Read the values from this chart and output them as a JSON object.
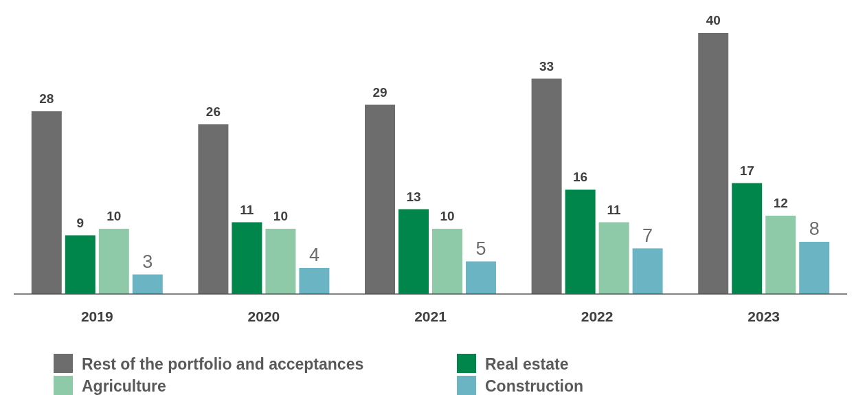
{
  "chart_data": {
    "type": "bar",
    "categories": [
      "2019",
      "2020",
      "2021",
      "2022",
      "2023"
    ],
    "series": [
      {
        "name": "Rest of the portfolio and acceptances",
        "color": "#6d6d6d",
        "values": [
          28,
          26,
          29,
          33,
          40
        ]
      },
      {
        "name": "Real estate",
        "color": "#00854a",
        "values": [
          9,
          11,
          13,
          16,
          17
        ]
      },
      {
        "name": "Agriculture",
        "color": "#8fcaa8",
        "values": [
          10,
          10,
          10,
          11,
          12
        ]
      },
      {
        "name": "Construction",
        "color": "#6ab4c4",
        "values": [
          3,
          4,
          5,
          7,
          8
        ]
      }
    ],
    "data_labels": true,
    "legend": "bottom"
  }
}
